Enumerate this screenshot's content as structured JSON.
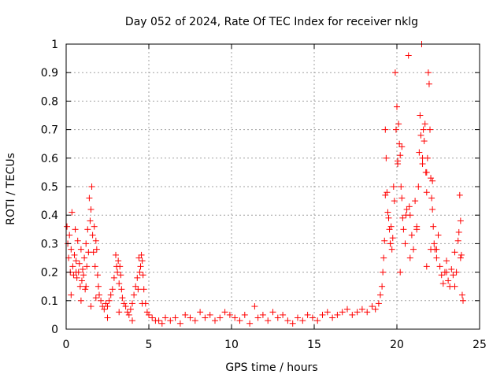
{
  "chart_data": {
    "type": "scatter",
    "title": "Day 052 of 2024, Rate Of TEC Index for receiver nklg",
    "xlabel": "GPS time / hours",
    "ylabel": "ROTI / TECUs",
    "xlim": [
      0,
      25
    ],
    "ylim": [
      0,
      1
    ],
    "xticks": [
      0,
      5,
      10,
      15,
      20,
      25
    ],
    "yticks": [
      0,
      0.1,
      0.2,
      0.3,
      0.4,
      0.5,
      0.6,
      0.7,
      0.8,
      0.9,
      1
    ],
    "grid": true,
    "marker": "+",
    "colors": {
      "marker": "#ff0000",
      "grid": "#a0a0a0",
      "axis": "#000000"
    },
    "x": [
      0.05,
      0.1,
      0.15,
      0.2,
      0.25,
      0.3,
      0.35,
      0.4,
      0.45,
      0.5,
      0.55,
      0.6,
      0.65,
      0.7,
      0.75,
      0.8,
      0.85,
      0.9,
      0.95,
      1.0,
      1.05,
      1.1,
      1.15,
      1.2,
      1.25,
      1.3,
      1.35,
      1.4,
      1.45,
      1.5,
      1.55,
      1.6,
      1.65,
      1.7,
      1.75,
      1.8,
      1.85,
      1.9,
      1.95,
      2.0,
      2.1,
      2.2,
      2.3,
      2.4,
      2.5,
      2.6,
      2.7,
      2.8,
      2.9,
      3.0,
      3.05,
      3.1,
      3.15,
      3.2,
      3.25,
      3.3,
      3.35,
      3.4,
      3.5,
      3.6,
      3.7,
      3.8,
      3.9,
      4.0,
      4.1,
      4.2,
      4.3,
      4.35,
      4.4,
      4.45,
      4.5,
      4.55,
      4.6,
      4.65,
      4.7,
      4.8,
      4.9,
      5.0,
      5.2,
      5.4,
      5.6,
      5.8,
      6.0,
      6.3,
      6.6,
      6.9,
      7.2,
      7.5,
      7.8,
      8.1,
      8.4,
      8.7,
      9.0,
      9.3,
      9.6,
      9.9,
      10.2,
      10.5,
      10.8,
      11.1,
      11.4,
      11.6,
      11.9,
      12.2,
      12.5,
      12.8,
      13.1,
      13.4,
      13.7,
      14.0,
      14.3,
      14.6,
      14.9,
      15.2,
      15.5,
      15.8,
      16.1,
      16.4,
      16.7,
      17.0,
      17.3,
      17.6,
      17.9,
      18.2,
      18.5,
      18.7,
      18.9,
      19.0,
      19.1,
      19.15,
      19.2,
      19.25,
      19.3,
      19.35,
      19.4,
      19.45,
      19.5,
      19.55,
      19.6,
      19.65,
      19.7,
      19.75,
      19.8,
      19.85,
      19.9,
      19.95,
      20.0,
      20.05,
      20.1,
      20.15,
      20.2,
      20.25,
      20.3,
      20.35,
      20.4,
      20.5,
      20.6,
      20.7,
      20.8,
      20.9,
      21.0,
      21.1,
      21.2,
      21.3,
      21.35,
      21.4,
      21.45,
      21.5,
      21.55,
      21.6,
      21.65,
      21.7,
      21.75,
      21.8,
      21.85,
      21.9,
      21.95,
      22.0,
      22.05,
      22.1,
      22.15,
      22.2,
      22.25,
      22.3,
      22.4,
      22.5,
      22.6,
      22.7,
      22.8,
      22.9,
      23.0,
      23.1,
      23.2,
      23.3,
      23.4,
      23.5,
      23.6,
      23.7,
      23.75,
      23.8,
      23.85,
      23.9,
      23.95,
      24.0,
      0.3,
      0.6,
      0.9,
      1.2,
      1.5,
      1.8,
      2.5,
      3.2,
      4.0,
      4.6,
      19.6,
      20.2,
      20.8,
      21.2,
      21.8,
      22.4,
      23.0,
      23.5,
      20.55,
      21.55,
      22.05,
      20.05,
      20.3,
      21.8,
      22.15,
      19.3,
      20.75,
      23.85
    ],
    "y": [
      0.36,
      0.3,
      0.25,
      0.33,
      0.2,
      0.28,
      0.41,
      0.22,
      0.19,
      0.26,
      0.35,
      0.24,
      0.18,
      0.31,
      0.2,
      0.23,
      0.15,
      0.28,
      0.17,
      0.21,
      0.19,
      0.25,
      0.14,
      0.3,
      0.22,
      0.35,
      0.27,
      0.46,
      0.38,
      0.42,
      0.5,
      0.33,
      0.27,
      0.36,
      0.22,
      0.31,
      0.28,
      0.19,
      0.15,
      0.12,
      0.1,
      0.08,
      0.07,
      0.09,
      0.08,
      0.1,
      0.12,
      0.14,
      0.18,
      0.26,
      0.22,
      0.2,
      0.24,
      0.16,
      0.22,
      0.19,
      0.14,
      0.11,
      0.09,
      0.08,
      0.06,
      0.05,
      0.07,
      0.09,
      0.12,
      0.15,
      0.18,
      0.14,
      0.25,
      0.2,
      0.22,
      0.26,
      0.24,
      0.19,
      0.14,
      0.09,
      0.06,
      0.05,
      0.04,
      0.03,
      0.03,
      0.02,
      0.04,
      0.03,
      0.04,
      0.02,
      0.05,
      0.04,
      0.03,
      0.06,
      0.04,
      0.05,
      0.03,
      0.04,
      0.06,
      0.05,
      0.04,
      0.03,
      0.05,
      0.02,
      0.08,
      0.04,
      0.05,
      0.03,
      0.06,
      0.04,
      0.05,
      0.03,
      0.02,
      0.04,
      0.03,
      0.05,
      0.04,
      0.03,
      0.05,
      0.06,
      0.04,
      0.05,
      0.06,
      0.07,
      0.05,
      0.06,
      0.07,
      0.06,
      0.08,
      0.07,
      0.09,
      0.12,
      0.15,
      0.2,
      0.25,
      0.31,
      0.47,
      0.6,
      0.48,
      0.41,
      0.39,
      0.35,
      0.3,
      0.36,
      0.28,
      0.32,
      0.5,
      0.45,
      0.9,
      0.7,
      0.78,
      0.59,
      0.72,
      0.65,
      0.61,
      0.5,
      0.46,
      0.39,
      0.35,
      0.3,
      0.42,
      0.96,
      0.4,
      0.33,
      0.28,
      0.45,
      0.36,
      0.5,
      0.62,
      0.75,
      0.68,
      1.0,
      0.58,
      0.7,
      0.66,
      0.72,
      0.55,
      0.48,
      0.6,
      0.9,
      0.86,
      0.7,
      0.53,
      0.46,
      0.42,
      0.36,
      0.3,
      0.28,
      0.25,
      0.33,
      0.22,
      0.19,
      0.16,
      0.2,
      0.24,
      0.17,
      0.15,
      0.21,
      0.19,
      0.27,
      0.2,
      0.31,
      0.34,
      0.47,
      0.38,
      0.26,
      0.12,
      0.1,
      0.12,
      0.2,
      0.1,
      0.15,
      0.08,
      0.11,
      0.04,
      0.06,
      0.03,
      0.09,
      0.3,
      0.2,
      0.25,
      0.35,
      0.22,
      0.28,
      0.2,
      0.15,
      0.4,
      0.6,
      0.28,
      0.58,
      0.64,
      0.55,
      0.52,
      0.7,
      0.43,
      0.25
    ]
  }
}
